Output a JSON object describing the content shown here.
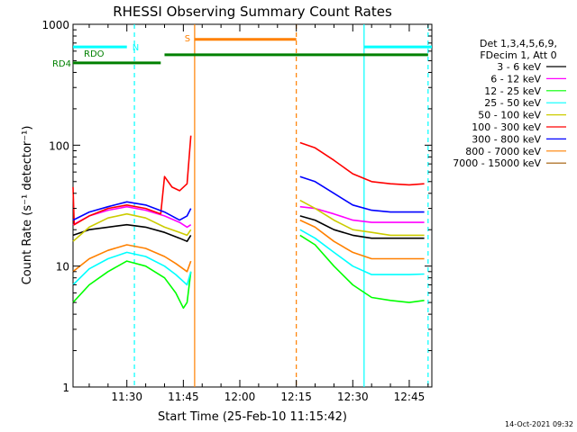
{
  "chart_data": {
    "type": "line",
    "title": "RHESSI Observing Summary Count Rates",
    "xlabel": "Start Time (25-Feb-10 11:15:42)",
    "ylabel": "Count Rate (s⁻¹ detector⁻¹)",
    "ylog": true,
    "ylim": [
      1,
      1000
    ],
    "xlim": [
      "11:15:42",
      "12:51:00"
    ],
    "x_ticks": [
      "11:30",
      "11:45",
      "12:00",
      "12:15",
      "12:30",
      "12:45"
    ],
    "y_ticks": [
      "1",
      "10",
      "100",
      "1000"
    ],
    "legend": {
      "placement": "right",
      "header": [
        "Det 1,3,4,5,6,9,",
        "FDecim 1, Att 0"
      ]
    },
    "series": [
      {
        "name": "3 - 6 keV",
        "color": "#000000",
        "points": [
          [
            "11:15:42",
            18
          ],
          [
            "11:20",
            20
          ],
          [
            "11:25",
            21
          ],
          [
            "11:30",
            22
          ],
          [
            "11:35",
            21
          ],
          [
            "11:40",
            19
          ],
          [
            "11:44",
            17
          ],
          [
            "11:46",
            16
          ],
          [
            "11:47",
            18
          ],
          null,
          [
            "12:16",
            26
          ],
          [
            "12:20",
            24
          ],
          [
            "12:25",
            20
          ],
          [
            "12:30",
            18
          ],
          [
            "12:35",
            17
          ],
          [
            "12:40",
            17
          ],
          [
            "12:45",
            17
          ],
          [
            "12:49",
            17
          ]
        ]
      },
      {
        "name": "6 - 12 keV",
        "color": "#ff00ff",
        "points": [
          [
            "11:15:42",
            22
          ],
          [
            "11:20",
            26
          ],
          [
            "11:25",
            29
          ],
          [
            "11:30",
            31
          ],
          [
            "11:35",
            29
          ],
          [
            "11:40",
            26
          ],
          [
            "11:44",
            23
          ],
          [
            "11:46",
            21
          ],
          [
            "11:47",
            22
          ],
          null,
          [
            "12:16",
            31
          ],
          [
            "12:20",
            30
          ],
          [
            "12:25",
            27
          ],
          [
            "12:30",
            24
          ],
          [
            "12:35",
            23
          ],
          [
            "12:40",
            23
          ],
          [
            "12:45",
            23
          ],
          [
            "12:49",
            23
          ]
        ]
      },
      {
        "name": "12 - 25 keV",
        "color": "#00ff00",
        "points": [
          [
            "11:15:42",
            5
          ],
          [
            "11:20",
            7
          ],
          [
            "11:25",
            9
          ],
          [
            "11:30",
            11
          ],
          [
            "11:35",
            10
          ],
          [
            "11:40",
            8
          ],
          [
            "11:43",
            6
          ],
          [
            "11:45",
            4.5
          ],
          [
            "11:46",
            5
          ],
          [
            "11:47",
            9
          ],
          null,
          [
            "12:16",
            18
          ],
          [
            "12:20",
            15
          ],
          [
            "12:25",
            10
          ],
          [
            "12:30",
            7
          ],
          [
            "12:35",
            5.5
          ],
          [
            "12:40",
            5.2
          ],
          [
            "12:45",
            5
          ],
          [
            "12:49",
            5.2
          ]
        ]
      },
      {
        "name": "25 - 50 keV",
        "color": "#00ffff",
        "points": [
          [
            "11:15:42",
            7
          ],
          [
            "11:20",
            9.5
          ],
          [
            "11:25",
            11.5
          ],
          [
            "11:30",
            13
          ],
          [
            "11:35",
            12
          ],
          [
            "11:40",
            10
          ],
          [
            "11:43",
            8.5
          ],
          [
            "11:46",
            7
          ],
          [
            "11:47",
            9
          ],
          null,
          [
            "12:16",
            20
          ],
          [
            "12:20",
            17
          ],
          [
            "12:25",
            13
          ],
          [
            "12:30",
            10
          ],
          [
            "12:35",
            8.5
          ],
          [
            "12:40",
            8.5
          ],
          [
            "12:45",
            8.5
          ],
          [
            "12:49",
            8.6
          ]
        ]
      },
      {
        "name": "50 - 100 keV",
        "color": "#cccc00",
        "points": [
          [
            "11:15:42",
            16
          ],
          [
            "11:20",
            21
          ],
          [
            "11:25",
            25
          ],
          [
            "11:30",
            27
          ],
          [
            "11:35",
            25
          ],
          [
            "11:40",
            21
          ],
          [
            "11:44",
            19
          ],
          [
            "11:46",
            18
          ],
          [
            "11:47",
            20
          ],
          null,
          [
            "12:16",
            35
          ],
          [
            "12:20",
            30
          ],
          [
            "12:25",
            24
          ],
          [
            "12:30",
            20
          ],
          [
            "12:35",
            19
          ],
          [
            "12:40",
            18
          ],
          [
            "12:45",
            18
          ],
          [
            "12:49",
            18
          ]
        ]
      },
      {
        "name": "100 - 300 keV",
        "color": "#ff0000",
        "points": [
          [
            "11:15:42",
            45
          ],
          [
            "11:16",
            22
          ],
          [
            "11:20",
            26
          ],
          [
            "11:25",
            30
          ],
          [
            "11:30",
            32
          ],
          [
            "11:35",
            30
          ],
          [
            "11:39",
            27
          ],
          [
            "11:40",
            55
          ],
          [
            "11:42",
            45
          ],
          [
            "11:44",
            42
          ],
          [
            "11:46",
            48
          ],
          [
            "11:47",
            120
          ],
          null,
          [
            "12:16",
            105
          ],
          [
            "12:20",
            95
          ],
          [
            "12:25",
            75
          ],
          [
            "12:30",
            58
          ],
          [
            "12:35",
            50
          ],
          [
            "12:40",
            48
          ],
          [
            "12:45",
            47
          ],
          [
            "12:49",
            48
          ]
        ]
      },
      {
        "name": "300 - 800 keV",
        "color": "#0000ff",
        "points": [
          [
            "11:15:42",
            24
          ],
          [
            "11:20",
            28
          ],
          [
            "11:25",
            31
          ],
          [
            "11:30",
            34
          ],
          [
            "11:35",
            32
          ],
          [
            "11:40",
            28
          ],
          [
            "11:44",
            24
          ],
          [
            "11:46",
            26
          ],
          [
            "11:47",
            30
          ],
          null,
          [
            "12:16",
            55
          ],
          [
            "12:20",
            50
          ],
          [
            "12:25",
            40
          ],
          [
            "12:30",
            32
          ],
          [
            "12:35",
            29
          ],
          [
            "12:40",
            28
          ],
          [
            "12:45",
            28
          ],
          [
            "12:49",
            28
          ]
        ]
      },
      {
        "name": "800 - 7000 keV",
        "color": "#ff8000",
        "points": [
          [
            "11:15:42",
            9
          ],
          [
            "11:20",
            11.5
          ],
          [
            "11:25",
            13.5
          ],
          [
            "11:30",
            15
          ],
          [
            "11:35",
            14
          ],
          [
            "11:40",
            12
          ],
          [
            "11:43",
            10.5
          ],
          [
            "11:46",
            9
          ],
          [
            "11:47",
            11
          ],
          null,
          [
            "12:16",
            24
          ],
          [
            "12:20",
            21
          ],
          [
            "12:25",
            16
          ],
          [
            "12:30",
            13
          ],
          [
            "12:35",
            11.5
          ],
          [
            "12:40",
            11.5
          ],
          [
            "12:45",
            11.5
          ],
          [
            "12:49",
            11.5
          ]
        ]
      },
      {
        "name": "7000 - 15000 keV",
        "color": "#a05a00",
        "points": []
      }
    ],
    "bars": [
      {
        "label": "N",
        "color": "#00ffff",
        "y": 650,
        "segments": [
          [
            "11:15:42",
            "11:30"
          ],
          [
            "12:33",
            "12:51"
          ]
        ]
      },
      {
        "label": "S",
        "color": "#ff8000",
        "y": 750,
        "segments": [
          [
            "11:48",
            "12:15"
          ]
        ]
      },
      {
        "label": "RD4",
        "color": "#008000",
        "y": 480,
        "segments": [
          [
            "11:15:42",
            "11:39"
          ]
        ]
      },
      {
        "label": "RDO",
        "color": "#008000",
        "y": 560,
        "segments": [
          [
            "11:40",
            "12:50"
          ]
        ]
      }
    ],
    "vlines": [
      {
        "x": "11:32",
        "color": "#00ffff",
        "style": "dashed"
      },
      {
        "x": "11:48",
        "color": "#ff8000",
        "style": "solid"
      },
      {
        "x": "12:15",
        "color": "#ff8000",
        "style": "dashed"
      },
      {
        "x": "12:33",
        "color": "#00ffff",
        "style": "solid"
      },
      {
        "x": "12:50",
        "color": "#00ffff",
        "style": "dashed"
      }
    ]
  },
  "footer": {
    "date": "14-Oct-2021 09:32"
  }
}
